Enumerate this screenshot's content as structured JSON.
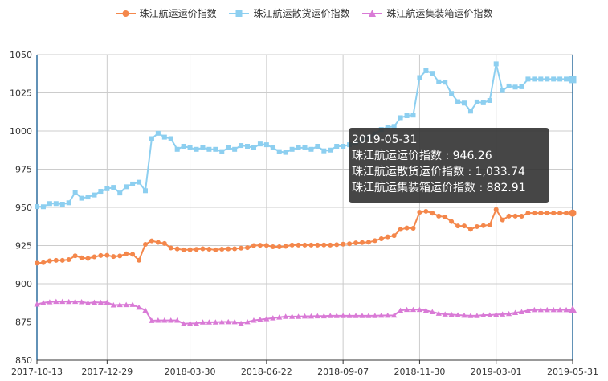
{
  "legend": [
    {
      "name": "珠江航运运价指数",
      "color": "#f4874b",
      "marker": "circle"
    },
    {
      "name": "珠江航运散货运价指数",
      "color": "#8dcff0",
      "marker": "square"
    },
    {
      "name": "珠江航运集装箱运价指数",
      "color": "#d97ad6",
      "marker": "triangle"
    }
  ],
  "tooltip": {
    "title": "2019-05-31",
    "rows": [
      {
        "label": "珠江航运运价指数",
        "sep": " : ",
        "value": "946.26"
      },
      {
        "label": "珠江航运散货运价指数",
        "sep": " : ",
        "value": "1,033.74"
      },
      {
        "label": "珠江航运集装箱运价指数",
        "sep": " : ",
        "value": "882.91"
      }
    ]
  },
  "chart_data": {
    "type": "line",
    "title": "",
    "xlabel": "",
    "ylabel": "",
    "ylim": [
      850,
      1050
    ],
    "yticks": [
      850,
      875,
      900,
      925,
      950,
      975,
      1000,
      1025,
      1050
    ],
    "xticks": [
      "2017-10-13",
      "2017-12-29",
      "2018-03-30",
      "2018-06-22",
      "2018-09-07",
      "2018-11-30",
      "2019-03-01",
      "2019-05-31"
    ],
    "xtick_index": [
      0,
      11,
      24,
      36,
      48,
      60,
      72,
      84
    ],
    "point_count": 85,
    "grid": true,
    "legend_position": "top-center",
    "series": [
      {
        "name": "珠江航运运价指数",
        "color": "#f4874b",
        "marker": "circle",
        "values": [
          913.5,
          913.8,
          915,
          915.3,
          915.3,
          915.8,
          918.3,
          917,
          916.6,
          917.6,
          918.5,
          918.6,
          917.8,
          918.2,
          919.6,
          919.3,
          915.4,
          925.8,
          928.1,
          927.1,
          926.4,
          923.4,
          922.8,
          922.2,
          922.3,
          922.5,
          922.9,
          922.6,
          922.2,
          922.6,
          922.8,
          922.9,
          923.3,
          923.6,
          925,
          925.2,
          925.1,
          924.2,
          924.2,
          924.5,
          925.3,
          925.3,
          925.3,
          925.3,
          925.3,
          925.4,
          925.3,
          925.6,
          925.9,
          926.2,
          926.8,
          927,
          927.2,
          928.2,
          929.5,
          930.7,
          931.5,
          935.5,
          936.5,
          936.3,
          946.8,
          947.4,
          946.2,
          944.3,
          943.7,
          940.7,
          937.8,
          937.8,
          935.6,
          937.4,
          938,
          938.5,
          948.6,
          941.8,
          944.3,
          944.3,
          944.2,
          946.26,
          946.26,
          946.26,
          946.26,
          946.26,
          946.26,
          946.26,
          946.26
        ]
      },
      {
        "name": "珠江航运散货运价指数",
        "color": "#8dcff0",
        "marker": "square",
        "values": [
          950.5,
          950.4,
          952.5,
          952.5,
          952.1,
          953,
          959.8,
          956,
          956.8,
          958.1,
          960.5,
          962.2,
          963.1,
          959.4,
          963.5,
          965.3,
          966.5,
          960.9,
          995,
          998.5,
          996,
          995,
          988,
          990,
          989,
          988,
          989,
          988,
          988,
          986.5,
          989,
          988,
          990.5,
          990,
          989,
          991.5,
          991,
          989,
          986.5,
          986,
          988,
          989,
          989,
          988,
          990,
          987,
          987.5,
          990,
          990,
          991,
          992,
          994,
          996,
          998,
          1001,
          1002.5,
          1003,
          1008.7,
          1010,
          1010.4,
          1035,
          1039.5,
          1037.8,
          1032.2,
          1032,
          1024.6,
          1019.2,
          1018.3,
          1013,
          1019,
          1018.5,
          1020,
          1044,
          1026.5,
          1029.5,
          1028.8,
          1029,
          1034,
          1034,
          1034,
          1034,
          1034,
          1034,
          1034,
          1033.74
        ]
      },
      {
        "name": "珠江航运集装箱运价指数",
        "color": "#d97ad6",
        "marker": "triangle",
        "values": [
          886.5,
          887.5,
          888,
          888.3,
          888.3,
          888.2,
          888.3,
          888.1,
          887.3,
          887.8,
          887.7,
          887.8,
          886,
          886.2,
          886.2,
          886.3,
          884.5,
          882.6,
          875.8,
          876,
          876,
          876,
          876,
          873.8,
          874,
          874,
          874.8,
          874.8,
          874.8,
          875,
          875,
          875,
          874,
          875,
          876,
          876.5,
          877,
          877.5,
          878,
          878.5,
          878.5,
          878.5,
          878.7,
          878.7,
          878.8,
          878.8,
          879,
          879,
          879,
          879,
          879,
          879,
          879,
          879,
          879.2,
          879.2,
          879.3,
          882.5,
          883,
          883,
          883,
          882.5,
          881.5,
          880.5,
          880,
          879.8,
          879.5,
          879.2,
          879,
          879,
          879.5,
          879.5,
          879.8,
          880,
          880.3,
          881,
          881.5,
          882.5,
          882.91,
          882.91,
          882.91,
          882.91,
          882.91,
          882.91,
          882.91
        ]
      }
    ]
  }
}
